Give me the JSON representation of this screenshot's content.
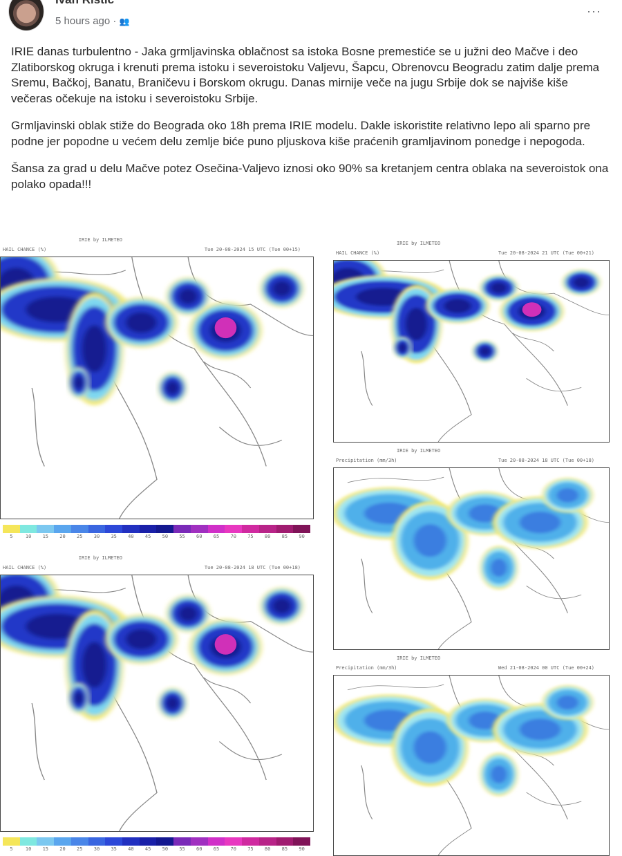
{
  "post": {
    "author": "Ivan Ristić",
    "time": "5 hours ago",
    "separator": "·",
    "audience_icon": "friends-icon",
    "more_label": "···",
    "paragraphs": [
      "IRIE danas turbulentno - Jaka grmljavinska oblačnost sa istoka Bosne premestiće se u južni deo Mačve i deo Zlatiborskog okruga i krenuti prema istoku i severoistoku Valjevu, Šapcu, Obrenovcu Beogradu zatim dalje prema Sremu, Bačkoj, Banatu, Braničevu i Borskom okrugu. Danas mirnije veče na jugu Srbije dok se najviše kiše večeras očekuje na istoku i severoistoku Srbije.",
      "Grmljavinski oblak stiže do Beograda oko 18h prema IRIE modelu. Dakle iskoristite relativno lepo ali sparno pre podne jer popodne u većem delu zemlje biće puno pljuskova kiše praćenih gramljavinom ponedge i nepogoda.",
      "Šansa za grad u delu Mačve potez Osečina-Valjevo iznosi oko 90% sa kretanjem centra oblaka na severoistok ona polako opada!!!"
    ]
  },
  "maps": [
    {
      "title": "IRIE by ILMETEO",
      "left": "HAIL CHANCE (%)",
      "right": "Tue 20-08-2024 15 UTC (Tue 00+15)",
      "kind": "hail"
    },
    {
      "title": "IRIE by ILMETEO",
      "left": "HAIL CHANCE (%)",
      "right": "Tue 20-08-2024 18 UTC (Tue 00+18)",
      "kind": "hail"
    },
    {
      "title": "IRIE by ILMETEO",
      "left": "HAIL CHANCE (%)",
      "right": "Tue 20-08-2024 21 UTC (Tue 00+21)",
      "kind": "hail"
    },
    {
      "title": "IRIE by ILMETEO",
      "left": "Precipitation (mm/3h)",
      "right": "Tue 20-08-2024 18 UTC (Tue 00+18)",
      "kind": "precip"
    },
    {
      "title": "IRIE by ILMETEO",
      "left": "Precipitation (mm/3h)",
      "right": "Wed 21-08-2024 00 UTC (Tue 00+24)",
      "kind": "precip"
    }
  ],
  "colorbar": {
    "ticks": [
      "5",
      "10",
      "15",
      "20",
      "25",
      "30",
      "35",
      "40",
      "45",
      "50",
      "55",
      "60",
      "65",
      "70",
      "75",
      "80",
      "85",
      "90"
    ],
    "colors": [
      "#f5e65a",
      "#7fe8e0",
      "#7cc8f0",
      "#5aa6ee",
      "#4a86e8",
      "#3a66e0",
      "#2d48d8",
      "#2230c0",
      "#1a20a8",
      "#141890",
      "#7a2ab8",
      "#a030c0",
      "#d030c8",
      "#e838c0",
      "#d02aa0",
      "#b82488",
      "#a01c70",
      "#801458"
    ]
  }
}
